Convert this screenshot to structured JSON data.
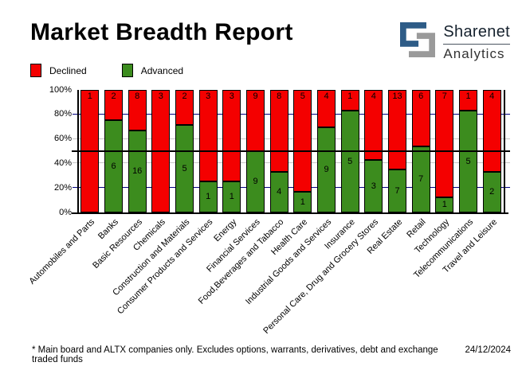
{
  "title": "Market Breadth Report",
  "brand": {
    "name": "Sharenet",
    "sub": "Analytics"
  },
  "footer": {
    "note": "* Main board and ALTX companies only. Excludes options, warrants, derivatives, debt and exchange traded funds",
    "date": "24/12/2024"
  },
  "colors": {
    "declined": "#f40000",
    "advanced": "#3c8c1e",
    "grid_major": "#000080",
    "grid_minor": "#c6c6c6",
    "axis": "#000000",
    "reference_line": "#000000",
    "logo_blue": "#2e5c87",
    "logo_gray": "#9a9a9a"
  },
  "chart_data": {
    "type": "bar",
    "subtype": "stacked-100-percent",
    "title": "Market Breadth Report",
    "categories": [
      "Automobiles and Parts",
      "Banks",
      "Basic Resources",
      "Chemicals",
      "Construction and Materials",
      "Consumer Products and Services",
      "Energy",
      "Financial Services",
      "Food,Beverages and Tabacco",
      "Health Care",
      "Industrial Goods and Services",
      "Insurance",
      "Personal Care, Drug and Grocery Stores",
      "Real Estate",
      "Retail",
      "Technology",
      "Telecommunications",
      "Travel and Leisure"
    ],
    "series": [
      {
        "name": "Declined",
        "color": "#f40000",
        "values": [
          1,
          2,
          8,
          3,
          2,
          3,
          3,
          9,
          8,
          5,
          4,
          1,
          4,
          13,
          6,
          7,
          1,
          4
        ]
      },
      {
        "name": "Advanced",
        "color": "#3c8c1e",
        "values": [
          0,
          6,
          16,
          0,
          5,
          1,
          1,
          9,
          4,
          1,
          9,
          5,
          3,
          7,
          7,
          1,
          5,
          2
        ]
      }
    ],
    "xlabel": "",
    "ylabel": "",
    "ylim": [
      0,
      100
    ],
    "y_ticks": [
      "0%",
      "20%",
      "40%",
      "60%",
      "80%",
      "100%"
    ],
    "grid": true,
    "reference_line_pct": 50,
    "legend_position": "top-left",
    "value_labels": true
  }
}
